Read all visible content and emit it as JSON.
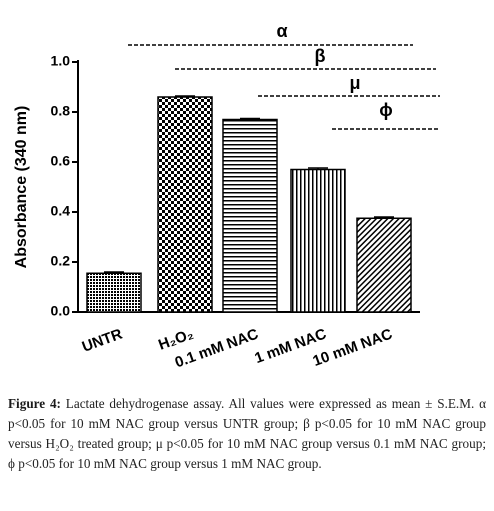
{
  "chart_data": {
    "type": "bar",
    "y_label": "Absorbance (340 nm)",
    "categories": [
      "UNTR",
      "H₂O₂",
      "0.1 mM NAC",
      "1 mM NAC",
      "10 mM NAC"
    ],
    "values": [
      0.155,
      0.86,
      0.77,
      0.57,
      0.375
    ],
    "errors": [
      0.005,
      0.004,
      0.004,
      0.006,
      0.005
    ],
    "patterns": [
      "dense",
      "checker",
      "horizontal",
      "vertical",
      "diagonal"
    ],
    "color": "#000000",
    "ylim": [
      0,
      1.0
    ],
    "yticks": [
      {
        "value": 0,
        "label": "0.0"
      },
      0.2,
      0.4,
      0.6,
      0.8,
      {
        "value": 1.0,
        "label": "1.0"
      }
    ],
    "annotations": [
      "α",
      "β",
      "μ",
      "ϕ"
    ]
  },
  "caption": {
    "label": "Figure 4:",
    "text": "Lactate dehydrogenase assay. All values were expressed as mean ± S.E.M. α p<0.05 for 10 mM NAC group versus UNTR group; β p<0.05 for 10 mM NAC group versus H₂O₂ treated group; μ p<0.05 for 10 mM NAC group versus 0.1 mM NAC group; ϕ p<0.05 for 10 mM NAC group versus 1 mM NAC group."
  }
}
